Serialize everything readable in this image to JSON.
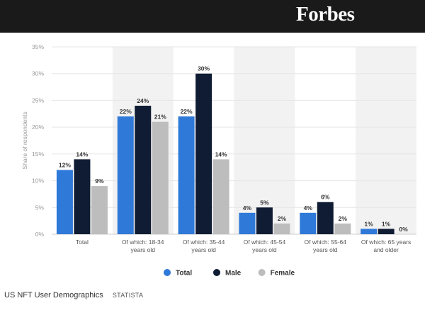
{
  "brand": {
    "logo_text": "Forbes"
  },
  "caption": {
    "title": "US NFT User Demographics",
    "source": "STATISTA"
  },
  "colors": {
    "Total": "#2f79d9",
    "Male": "#101c33",
    "Female": "#bdbdbd",
    "band": "#f2f2f2",
    "grid": "#e6e6e6"
  },
  "chart_data": {
    "type": "bar",
    "title": "",
    "xlabel": "",
    "ylabel": "Share of respondents",
    "ylim": [
      0,
      35
    ],
    "yticks": [
      "0%",
      "5%",
      "10%",
      "15%",
      "20%",
      "25%",
      "30%",
      "35%"
    ],
    "grid": true,
    "legend_position": "bottom-center",
    "categories": [
      [
        "Total"
      ],
      [
        "Of which: 18-34",
        "years old"
      ],
      [
        "Of which: 35-44",
        "years old"
      ],
      [
        "Of which: 45-54",
        "years old"
      ],
      [
        "Of which: 55-64",
        "years old"
      ],
      [
        "Of which: 65 years",
        "and older"
      ]
    ],
    "series": [
      {
        "name": "Total",
        "values": [
          12,
          22,
          22,
          4,
          4,
          1
        ],
        "labels": [
          "12%",
          "22%",
          "22%",
          "4%",
          "4%",
          "1%"
        ]
      },
      {
        "name": "Male",
        "values": [
          14,
          24,
          30,
          5,
          6,
          1
        ],
        "labels": [
          "14%",
          "24%",
          "30%",
          "5%",
          "6%",
          "1%"
        ]
      },
      {
        "name": "Female",
        "values": [
          9,
          21,
          14,
          2,
          2,
          0
        ],
        "labels": [
          "9%",
          "21%",
          "14%",
          "2%",
          "2%",
          "0%"
        ]
      }
    ]
  }
}
